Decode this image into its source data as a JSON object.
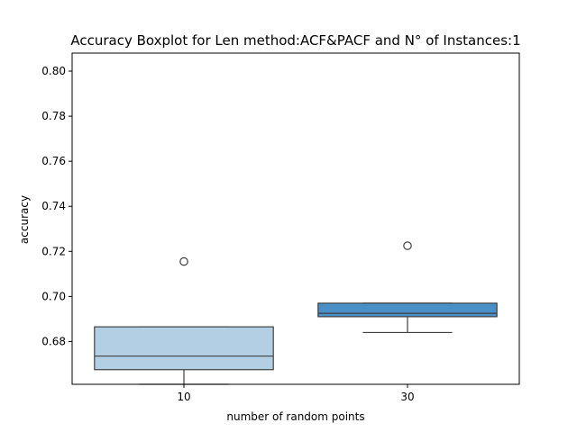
{
  "chart_data": {
    "type": "boxplot",
    "title": "Accuracy Boxplot for Len method:ACF&PACF and N° of Instances:1",
    "xlabel": "number of random points",
    "ylabel": "accuracy",
    "ylim": [
      0.661,
      0.808
    ],
    "yticks": [
      "0.68",
      "0.70",
      "0.72",
      "0.74",
      "0.76",
      "0.78",
      "0.80"
    ],
    "ytick_values": [
      0.68,
      0.7,
      0.72,
      0.74,
      0.76,
      0.78,
      0.8
    ],
    "grid": false,
    "legend": "none",
    "categories": [
      "10",
      "30"
    ],
    "boxes": [
      {
        "category": "10",
        "whisker_low": 0.661,
        "q1": 0.6675,
        "median": 0.6735,
        "q3": 0.6865,
        "whisker_high": 0.6865,
        "outliers": [
          0.7155
        ],
        "color": "#b3cfe4"
      },
      {
        "category": "30",
        "whisker_low": 0.684,
        "q1": 0.691,
        "median": 0.6925,
        "q3": 0.697,
        "whisker_high": 0.697,
        "outliers": [
          0.7225
        ],
        "color": "#4a8fc8"
      }
    ]
  }
}
